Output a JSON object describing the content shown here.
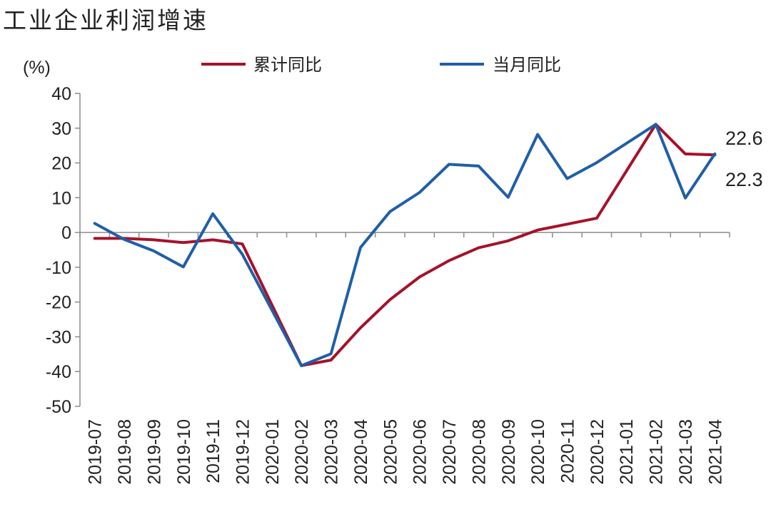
{
  "chart_data": {
    "type": "line",
    "title": "工业企业利润增速",
    "ylabel": "(%)",
    "xlabel": "",
    "ylim": [
      -50,
      40
    ],
    "yticks": [
      40,
      30,
      20,
      10,
      0,
      -10,
      -20,
      -30,
      -40,
      -50
    ],
    "grid": false,
    "legend_position": "top",
    "categories": [
      "2019-07",
      "2019-08",
      "2019-09",
      "2019-10",
      "2019-11",
      "2019-12",
      "2020-01",
      "2020-02",
      "2020-03",
      "2020-04",
      "2020-05",
      "2020-06",
      "2020-07",
      "2020-08",
      "2020-09",
      "2020-10",
      "2020-11",
      "2020-12",
      "2021-01",
      "2021-02",
      "2021-03",
      "2021-04"
    ],
    "series": [
      {
        "name": "累计同比",
        "color": "#A5122A",
        "values": [
          -1.7,
          -1.7,
          -2.1,
          -2.9,
          -2.1,
          -3.3,
          null,
          -38.3,
          -36.7,
          -27.4,
          -19.3,
          -12.8,
          -8.1,
          -4.4,
          -2.4,
          0.7,
          2.4,
          4.1,
          null,
          31.1,
          22.6,
          22.3
        ]
      },
      {
        "name": "当月同比",
        "color": "#1F5FA8",
        "values": [
          2.6,
          -2.0,
          -5.3,
          -9.9,
          5.4,
          -6.3,
          null,
          -38.3,
          -34.9,
          -4.3,
          6.0,
          11.5,
          19.6,
          19.1,
          10.1,
          28.2,
          15.5,
          20.1,
          null,
          31.1,
          9.9,
          22.6
        ]
      }
    ],
    "annotations": [
      {
        "text": "22.6"
      },
      {
        "text": "22.3"
      }
    ]
  }
}
